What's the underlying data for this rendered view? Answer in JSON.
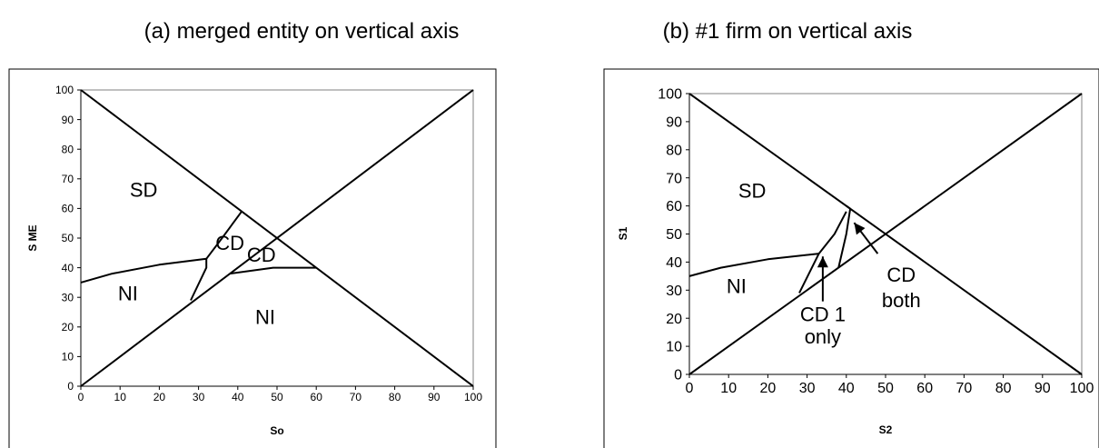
{
  "chart_data": [
    {
      "type": "line",
      "title": "(a) merged entity on vertical axis",
      "xlabel": "So",
      "ylabel": "S ME",
      "xlim": [
        0,
        100
      ],
      "ylim": [
        0,
        100
      ],
      "xticks": [
        "0",
        "10",
        "20",
        "30",
        "40",
        "50",
        "60",
        "70",
        "80",
        "90",
        "100"
      ],
      "yticks": [
        "0",
        "10",
        "20",
        "30",
        "40",
        "50",
        "60",
        "70",
        "80",
        "90",
        "100"
      ],
      "grid": false,
      "series": [
        {
          "x": [
            0,
            100
          ],
          "y": [
            100,
            0
          ]
        },
        {
          "x": [
            0,
            100
          ],
          "y": [
            0,
            100
          ]
        },
        {
          "x": [
            0,
            8,
            20,
            32,
            32,
            28
          ],
          "y": [
            35,
            38,
            41,
            43,
            40,
            29
          ]
        },
        {
          "x": [
            32,
            36,
            41
          ],
          "y": [
            43,
            50,
            59
          ]
        },
        {
          "x": [
            38,
            49,
            60
          ],
          "y": [
            38,
            40,
            40
          ]
        }
      ],
      "annotations": [
        {
          "text": "SD",
          "x": 16,
          "y": 64
        },
        {
          "text": "NI",
          "x": 12,
          "y": 29
        },
        {
          "text": "NI",
          "x": 47,
          "y": 21
        },
        {
          "text": "CD",
          "x": 38,
          "y": 46
        },
        {
          "text": "CD",
          "x": 46,
          "y": 42
        }
      ]
    },
    {
      "type": "line",
      "title": "(b) #1 firm on vertical axis",
      "xlabel": "S2",
      "ylabel": "S1",
      "xlim": [
        0,
        100
      ],
      "ylim": [
        0,
        100
      ],
      "xticks": [
        "0",
        "10",
        "20",
        "30",
        "40",
        "50",
        "60",
        "70",
        "80",
        "90",
        "100"
      ],
      "yticks": [
        "0",
        "10",
        "20",
        "30",
        "40",
        "50",
        "60",
        "70",
        "80",
        "90",
        "100"
      ],
      "grid": false,
      "series": [
        {
          "x": [
            0,
            100
          ],
          "y": [
            100,
            0
          ]
        },
        {
          "x": [
            0,
            100
          ],
          "y": [
            0,
            100
          ]
        },
        {
          "x": [
            0,
            8,
            20,
            33,
            28
          ],
          "y": [
            35,
            38,
            41,
            43,
            29
          ]
        },
        {
          "x": [
            33,
            37,
            40
          ],
          "y": [
            43,
            50,
            58
          ]
        },
        {
          "x": [
            40,
            41,
            40,
            38
          ],
          "y": [
            60,
            59,
            50,
            38
          ]
        }
      ],
      "annotations": [
        {
          "text": "SD",
          "x": 16,
          "y": 63
        },
        {
          "text": "NI",
          "x": 12,
          "y": 29
        },
        {
          "text": "CD 1",
          "x": 34,
          "y": 19
        },
        {
          "text": "only",
          "x": 34,
          "y": 11
        },
        {
          "text": "CD",
          "x": 54,
          "y": 33
        },
        {
          "text": "both",
          "x": 54,
          "y": 24
        }
      ],
      "arrows": [
        {
          "from": [
            34,
            26
          ],
          "to": [
            34,
            42
          ]
        },
        {
          "from": [
            48,
            43
          ],
          "to": [
            42,
            54
          ]
        }
      ]
    }
  ]
}
